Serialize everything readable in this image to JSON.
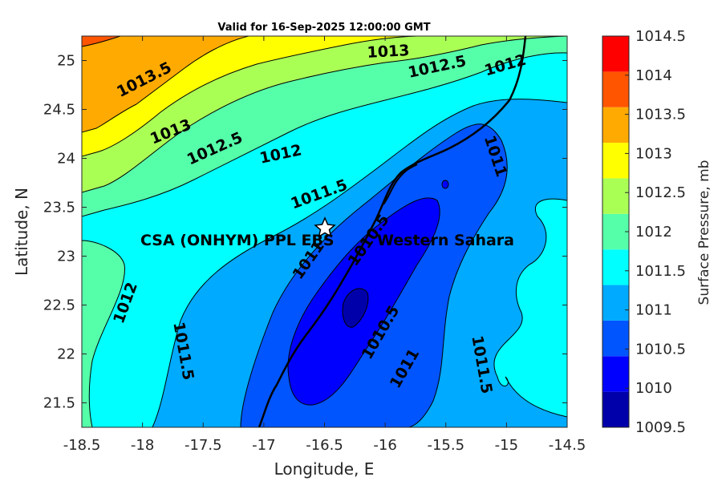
{
  "chart_data": {
    "type": "contour-map",
    "title": "Valid for 16-Sep-2025 12:00:00 GMT",
    "xlabel": "Longitude, E",
    "ylabel": "Latitude, N",
    "xlim": [
      -18.5,
      -14.5
    ],
    "ylim": [
      21.25,
      25.25
    ],
    "xticks": [
      "-18.5",
      "-18",
      "-17.5",
      "-17",
      "-16.5",
      "-16",
      "-15.5",
      "-15",
      "-14.5"
    ],
    "yticks": [
      "21.5",
      "22",
      "22.5",
      "23",
      "23.5",
      "24",
      "24.5",
      "25"
    ],
    "colorbar": {
      "label": "Surface Pressure, mb",
      "levels": [
        "1009.5",
        "1010",
        "1010.5",
        "1011",
        "1011.5",
        "1012",
        "1012.5",
        "1013",
        "1013.5",
        "1014",
        "1014.5"
      ],
      "colors": [
        "#0000aa",
        "#0000ff",
        "#0055ff",
        "#00aaff",
        "#00ffff",
        "#55ffaa",
        "#aaff55",
        "#ffff00",
        "#ffaa00",
        "#ff5500",
        "#ff0000"
      ]
    },
    "contour_labels": [
      {
        "text": "1013.5"
      },
      {
        "text": "1013"
      },
      {
        "text": "1012.5"
      },
      {
        "text": "1012"
      },
      {
        "text": "1013"
      },
      {
        "text": "1012.5"
      },
      {
        "text": "1012"
      },
      {
        "text": "1011.5"
      },
      {
        "text": "1011"
      },
      {
        "text": "1011"
      },
      {
        "text": "1010.5"
      },
      {
        "text": "1010.5"
      },
      {
        "text": "1011"
      },
      {
        "text": "1012"
      },
      {
        "text": "1011.5"
      },
      {
        "text": "1011.5"
      }
    ],
    "station": {
      "name": "CSA (ONHYM) PPL EBS",
      "lon": -16.5,
      "lat": 23.3
    },
    "region_label": "Western Sahara"
  }
}
